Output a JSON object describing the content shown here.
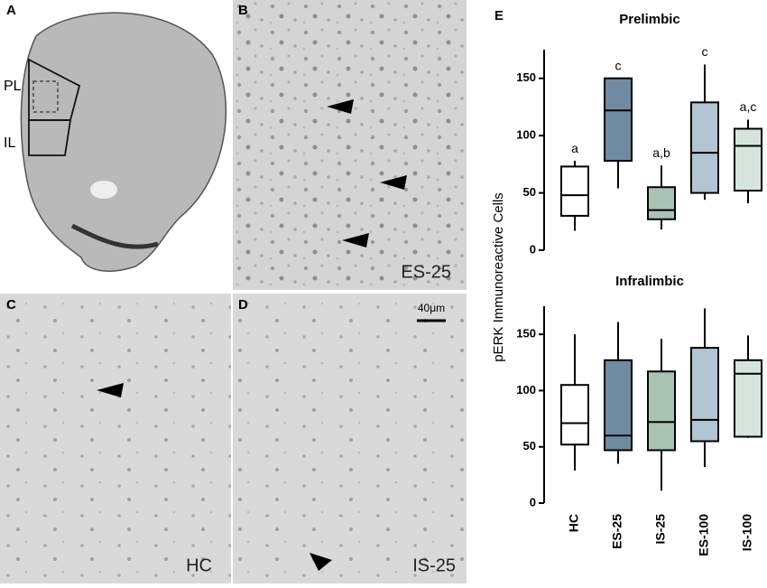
{
  "figure": {
    "panels": {
      "a": "A",
      "b": "B",
      "c": "C",
      "d": "D",
      "e": "E"
    },
    "region_labels": {
      "pl": "PL",
      "il": "IL"
    },
    "captions": {
      "b": "ES-25",
      "c": "HC",
      "d": "IS-25"
    },
    "scale_bar": "40μm",
    "ylabel": "pERK Immunoreactive Cells"
  },
  "chart_data": [
    {
      "type": "box",
      "title": "Prelimbic",
      "ylim": [
        0,
        175
      ],
      "yticks": [
        0,
        50,
        100,
        150
      ],
      "colors": [
        "#ffffff",
        "#6f8ba1",
        "#a9c3b5",
        "#b2c5d3",
        "#d6e4de"
      ],
      "boxes": [
        {
          "min": 17,
          "q1": 30,
          "median": 48,
          "q3": 73,
          "max": 78
        },
        {
          "min": 54,
          "q1": 78,
          "median": 122,
          "q3": 150,
          "max": 150
        },
        {
          "min": 18,
          "q1": 27,
          "median": 35,
          "q3": 55,
          "max": 74
        },
        {
          "min": 44,
          "q1": 50,
          "median": 85,
          "q3": 129,
          "max": 162
        },
        {
          "min": 41,
          "q1": 52,
          "median": 91,
          "q3": 106,
          "max": 114
        }
      ],
      "annotations": [
        "a",
        "c",
        "a,b",
        "c",
        "a,c"
      ]
    },
    {
      "type": "box",
      "title": "Infralimbic",
      "ylim": [
        0,
        175
      ],
      "yticks": [
        0,
        50,
        100,
        150
      ],
      "categories": [
        "HC",
        "ES-25",
        "IS-25",
        "ES-100",
        "IS-100"
      ],
      "colors": [
        "#ffffff",
        "#6f8ba1",
        "#a9c3b5",
        "#b2c5d3",
        "#d6e4de"
      ],
      "boxes": [
        {
          "min": 29,
          "q1": 52,
          "median": 71,
          "q3": 105,
          "max": 150
        },
        {
          "min": 35,
          "q1": 47,
          "median": 60,
          "q3": 127,
          "max": 161
        },
        {
          "min": 11,
          "q1": 47,
          "median": 72,
          "q3": 117,
          "max": 146
        },
        {
          "min": 32,
          "q1": 55,
          "median": 74,
          "q3": 138,
          "max": 173
        },
        {
          "min": 58,
          "q1": 59,
          "median": 115,
          "q3": 127,
          "max": 149
        }
      ]
    }
  ]
}
